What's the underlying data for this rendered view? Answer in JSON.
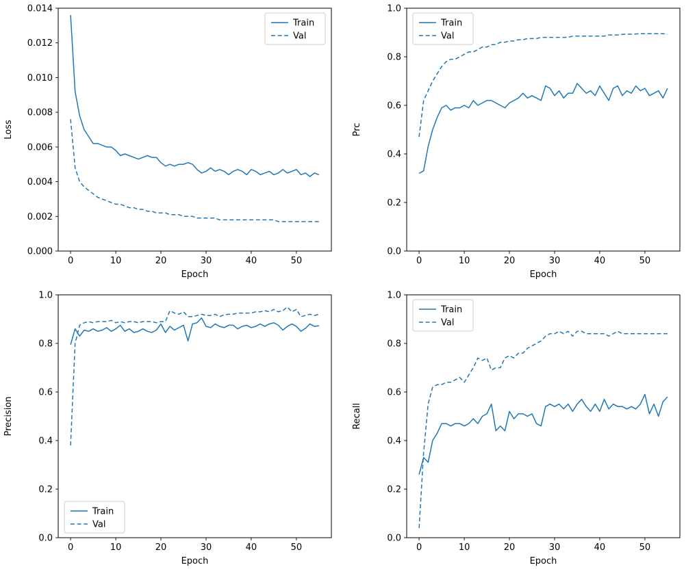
{
  "figure": {
    "background": "#ffffff",
    "line_color": "#1f77b4",
    "axis_color": "#000000",
    "legend_border_color": "#cccccc"
  },
  "epochs": [
    0,
    1,
    2,
    3,
    4,
    5,
    6,
    7,
    8,
    9,
    10,
    11,
    12,
    13,
    14,
    15,
    16,
    17,
    18,
    19,
    20,
    21,
    22,
    23,
    24,
    25,
    26,
    27,
    28,
    29,
    30,
    31,
    32,
    33,
    34,
    35,
    36,
    37,
    38,
    39,
    40,
    41,
    42,
    43,
    44,
    45,
    46,
    47,
    48,
    49,
    50,
    51,
    52,
    53,
    54,
    55
  ],
  "chart_data": [
    {
      "type": "line",
      "title": "",
      "xlabel": "Epoch",
      "ylabel": "Loss",
      "xlim": [
        -2.75,
        57.75
      ],
      "ylim": [
        0,
        0.014
      ],
      "xticks": [
        0,
        10,
        20,
        30,
        40,
        50
      ],
      "yticks": [
        0.0,
        0.002,
        0.004,
        0.006,
        0.008,
        0.01,
        0.012,
        0.014
      ],
      "ytick_decimals": 3,
      "grid": false,
      "legend": {
        "position": "top-right"
      },
      "series": [
        {
          "name": "Train",
          "style": "solid",
          "values": [
            0.0136,
            0.0092,
            0.0078,
            0.007,
            0.0066,
            0.0062,
            0.0062,
            0.0061,
            0.006,
            0.006,
            0.0058,
            0.0055,
            0.0056,
            0.0055,
            0.0054,
            0.0053,
            0.0054,
            0.0055,
            0.0054,
            0.0054,
            0.0051,
            0.0049,
            0.005,
            0.0049,
            0.005,
            0.005,
            0.0051,
            0.005,
            0.0047,
            0.0045,
            0.0046,
            0.0048,
            0.0046,
            0.0047,
            0.0046,
            0.0044,
            0.0046,
            0.0047,
            0.0046,
            0.0044,
            0.0047,
            0.0046,
            0.0044,
            0.0045,
            0.0046,
            0.0044,
            0.0045,
            0.0047,
            0.0045,
            0.0046,
            0.0047,
            0.0044,
            0.0045,
            0.0043,
            0.0045,
            0.0044
          ]
        },
        {
          "name": "Val",
          "style": "dashed",
          "values": [
            0.0076,
            0.0048,
            0.004,
            0.0037,
            0.0035,
            0.0033,
            0.0031,
            0.003,
            0.0029,
            0.0028,
            0.0027,
            0.0027,
            0.0026,
            0.0025,
            0.0025,
            0.0024,
            0.0024,
            0.0023,
            0.0023,
            0.0022,
            0.0022,
            0.0022,
            0.0021,
            0.0021,
            0.0021,
            0.002,
            0.002,
            0.002,
            0.0019,
            0.0019,
            0.0019,
            0.0019,
            0.0019,
            0.0018,
            0.0018,
            0.0018,
            0.0018,
            0.0018,
            0.0018,
            0.0018,
            0.0018,
            0.0018,
            0.0018,
            0.0018,
            0.0018,
            0.0018,
            0.0017,
            0.0017,
            0.0017,
            0.0017,
            0.0017,
            0.0017,
            0.0017,
            0.0017,
            0.0017,
            0.0017
          ]
        }
      ]
    },
    {
      "type": "line",
      "title": "",
      "xlabel": "Epoch",
      "ylabel": "Prc",
      "xlim": [
        -2.75,
        57.75
      ],
      "ylim": [
        0,
        1.0
      ],
      "xticks": [
        0,
        10,
        20,
        30,
        40,
        50
      ],
      "yticks": [
        0.0,
        0.2,
        0.4,
        0.6,
        0.8,
        1.0
      ],
      "ytick_decimals": 1,
      "grid": false,
      "legend": {
        "position": "top-left"
      },
      "series": [
        {
          "name": "Train",
          "style": "solid",
          "values": [
            0.32,
            0.33,
            0.43,
            0.5,
            0.55,
            0.59,
            0.6,
            0.58,
            0.59,
            0.59,
            0.6,
            0.59,
            0.62,
            0.6,
            0.61,
            0.62,
            0.62,
            0.61,
            0.6,
            0.59,
            0.61,
            0.62,
            0.63,
            0.65,
            0.63,
            0.64,
            0.63,
            0.62,
            0.68,
            0.67,
            0.64,
            0.66,
            0.63,
            0.65,
            0.65,
            0.69,
            0.67,
            0.65,
            0.66,
            0.64,
            0.68,
            0.65,
            0.62,
            0.67,
            0.68,
            0.64,
            0.66,
            0.65,
            0.68,
            0.66,
            0.67,
            0.64,
            0.65,
            0.66,
            0.63,
            0.67
          ]
        },
        {
          "name": "Val",
          "style": "dashed",
          "values": [
            0.47,
            0.62,
            0.66,
            0.7,
            0.73,
            0.76,
            0.78,
            0.79,
            0.79,
            0.8,
            0.81,
            0.82,
            0.82,
            0.83,
            0.84,
            0.84,
            0.85,
            0.85,
            0.86,
            0.86,
            0.865,
            0.865,
            0.87,
            0.87,
            0.875,
            0.875,
            0.875,
            0.88,
            0.88,
            0.88,
            0.88,
            0.88,
            0.88,
            0.88,
            0.885,
            0.885,
            0.885,
            0.885,
            0.885,
            0.885,
            0.885,
            0.885,
            0.89,
            0.89,
            0.89,
            0.892,
            0.893,
            0.893,
            0.894,
            0.895,
            0.895,
            0.895,
            0.895,
            0.895,
            0.895,
            0.893
          ]
        }
      ]
    },
    {
      "type": "line",
      "title": "",
      "xlabel": "Epoch",
      "ylabel": "Precision",
      "xlim": [
        -2.75,
        57.75
      ],
      "ylim": [
        0,
        1.0
      ],
      "xticks": [
        0,
        10,
        20,
        30,
        40,
        50
      ],
      "yticks": [
        0.0,
        0.2,
        0.4,
        0.6,
        0.8,
        1.0
      ],
      "ytick_decimals": 1,
      "grid": false,
      "legend": {
        "position": "bottom-left"
      },
      "series": [
        {
          "name": "Train",
          "style": "solid",
          "values": [
            0.795,
            0.86,
            0.83,
            0.855,
            0.85,
            0.86,
            0.85,
            0.855,
            0.865,
            0.85,
            0.86,
            0.875,
            0.85,
            0.86,
            0.845,
            0.85,
            0.86,
            0.85,
            0.845,
            0.855,
            0.88,
            0.845,
            0.87,
            0.855,
            0.865,
            0.875,
            0.81,
            0.88,
            0.885,
            0.905,
            0.87,
            0.865,
            0.88,
            0.87,
            0.865,
            0.875,
            0.875,
            0.86,
            0.87,
            0.875,
            0.865,
            0.87,
            0.88,
            0.87,
            0.88,
            0.885,
            0.875,
            0.855,
            0.87,
            0.88,
            0.87,
            0.85,
            0.862,
            0.88,
            0.87,
            0.873
          ]
        },
        {
          "name": "Val",
          "style": "dashed",
          "values": [
            0.38,
            0.8,
            0.875,
            0.885,
            0.89,
            0.885,
            0.89,
            0.89,
            0.89,
            0.895,
            0.885,
            0.89,
            0.885,
            0.89,
            0.89,
            0.885,
            0.89,
            0.89,
            0.89,
            0.885,
            0.89,
            0.89,
            0.935,
            0.925,
            0.92,
            0.93,
            0.91,
            0.91,
            0.915,
            0.92,
            0.915,
            0.915,
            0.92,
            0.91,
            0.918,
            0.92,
            0.92,
            0.925,
            0.925,
            0.925,
            0.925,
            0.93,
            0.93,
            0.935,
            0.93,
            0.94,
            0.93,
            0.935,
            0.95,
            0.93,
            0.94,
            0.91,
            0.915,
            0.92,
            0.915,
            0.92
          ]
        }
      ]
    },
    {
      "type": "line",
      "title": "",
      "xlabel": "Epoch",
      "ylabel": "Recall",
      "xlim": [
        -2.75,
        57.75
      ],
      "ylim": [
        0,
        1.0
      ],
      "xticks": [
        0,
        10,
        20,
        30,
        40,
        50
      ],
      "yticks": [
        0.0,
        0.2,
        0.4,
        0.6,
        0.8,
        1.0
      ],
      "ytick_decimals": 1,
      "grid": false,
      "legend": {
        "position": "top-left"
      },
      "series": [
        {
          "name": "Train",
          "style": "solid",
          "values": [
            0.26,
            0.33,
            0.31,
            0.4,
            0.43,
            0.47,
            0.47,
            0.46,
            0.47,
            0.47,
            0.46,
            0.47,
            0.49,
            0.47,
            0.5,
            0.51,
            0.55,
            0.44,
            0.46,
            0.44,
            0.52,
            0.49,
            0.51,
            0.51,
            0.5,
            0.51,
            0.47,
            0.46,
            0.54,
            0.55,
            0.54,
            0.55,
            0.53,
            0.55,
            0.52,
            0.55,
            0.57,
            0.54,
            0.52,
            0.55,
            0.52,
            0.57,
            0.53,
            0.55,
            0.54,
            0.54,
            0.53,
            0.54,
            0.53,
            0.55,
            0.59,
            0.51,
            0.55,
            0.5,
            0.56,
            0.58
          ]
        },
        {
          "name": "Val",
          "style": "dashed",
          "values": [
            0.04,
            0.35,
            0.55,
            0.62,
            0.63,
            0.63,
            0.64,
            0.64,
            0.65,
            0.66,
            0.64,
            0.67,
            0.7,
            0.74,
            0.73,
            0.74,
            0.69,
            0.7,
            0.7,
            0.74,
            0.75,
            0.74,
            0.76,
            0.76,
            0.78,
            0.79,
            0.8,
            0.81,
            0.83,
            0.84,
            0.84,
            0.85,
            0.84,
            0.85,
            0.83,
            0.85,
            0.85,
            0.84,
            0.84,
            0.84,
            0.84,
            0.84,
            0.83,
            0.84,
            0.85,
            0.84,
            0.84,
            0.84,
            0.84,
            0.84,
            0.84,
            0.84,
            0.84,
            0.84,
            0.84,
            0.84
          ]
        }
      ]
    }
  ]
}
